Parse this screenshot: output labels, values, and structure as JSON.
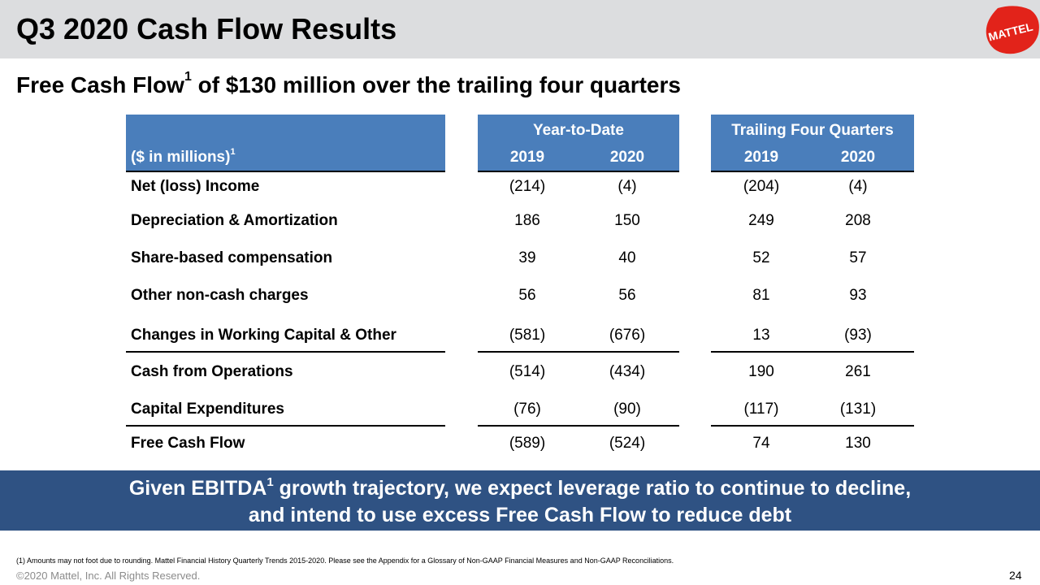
{
  "slide": {
    "title": "Q3 2020 Cash Flow Results",
    "logo_text": "MATTEL",
    "subtitle_pre": "Free Cash Flow",
    "subtitle_sup": "1",
    "subtitle_post": " of $130 million over the trailing four quarters"
  },
  "table": {
    "units_label": "($ in millions)",
    "units_sup": "1",
    "group_ytd": "Year-to-Date",
    "group_tfq": "Trailing Four Quarters",
    "col_years": [
      "2019",
      "2020",
      "2019",
      "2020"
    ],
    "rows": [
      {
        "label": "Net (loss) Income",
        "values": [
          "(214)",
          "(4)",
          "(204)",
          "(4)"
        ]
      },
      {
        "label": "Depreciation & Amortization",
        "values": [
          "186",
          "150",
          "249",
          "208"
        ]
      },
      {
        "label": "Share-based compensation",
        "values": [
          "39",
          "40",
          "52",
          "57"
        ]
      },
      {
        "label": "Other non-cash charges",
        "values": [
          "56",
          "56",
          "81",
          "93"
        ]
      },
      {
        "label": "Changes in Working Capital & Other",
        "values": [
          "(581)",
          "(676)",
          "13",
          "(93)"
        ]
      },
      {
        "label": "Cash from Operations",
        "values": [
          "(514)",
          "(434)",
          "190",
          "261"
        ]
      },
      {
        "label": "Capital Expenditures",
        "values": [
          "(76)",
          "(90)",
          "(117)",
          "(131)"
        ]
      },
      {
        "label": "Free Cash Flow",
        "values": [
          "(589)",
          "(524)",
          "74",
          "130"
        ]
      }
    ]
  },
  "banner": {
    "line1_pre": "Given EBITDA",
    "line1_sup": "1",
    "line1_post": " growth trajectory, we expect leverage ratio to continue to decline,",
    "line2": "and intend to use excess Free Cash Flow to reduce debt"
  },
  "footer": {
    "footnote": "(1)    Amounts may not foot due to rounding. Mattel Financial History Quarterly Trends 2015-2020. Please see the Appendix for a Glossary of Non-GAAP Financial Measures and Non-GAAP Reconciliations.",
    "copyright": "©2020 Mattel, Inc.  All Rights Reserved.",
    "page_number": "24"
  },
  "colors": {
    "header_blue": "#4a7ebb",
    "banner_navy": "#2f5283",
    "title_band_gray": "#dcdddf",
    "logo_red": "#e2231a"
  }
}
